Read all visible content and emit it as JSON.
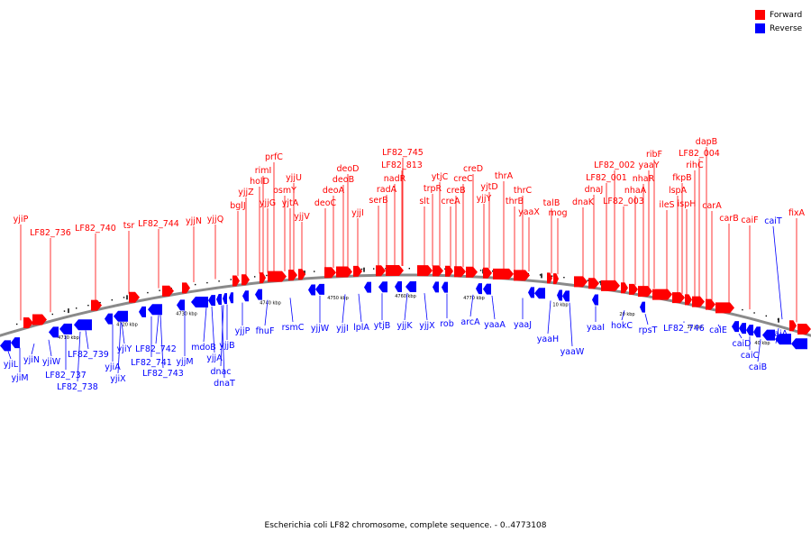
{
  "colors": {
    "forward": "#ff0000",
    "reverse": "#0000ff",
    "backbone": "#8a8a8a",
    "tick": "#000000"
  },
  "legend": [
    {
      "label": "Forward",
      "color": "#ff0000"
    },
    {
      "label": "Reverse",
      "color": "#0000ff"
    }
  ],
  "caption": "Escherichia coli LF82 chromosome, complete sequence. - 0..4773108",
  "scale_labels": [
    "4710 kbp",
    "4720 kbp",
    "4730 kbp",
    "4740 kbp",
    "4750 kbp",
    "4760 kbp",
    "4770 kbp",
    "10 kbp",
    "20 kbp",
    "30 kbp",
    "40 kbp"
  ],
  "forward_genes": [
    "yjiP",
    "LF82_736",
    "LF82_740",
    "tsr",
    "LF82_744",
    "yjjN",
    "yjjQ",
    "bglJ",
    "yjjZ",
    "rimI",
    "holD",
    "prfC",
    "yjjG",
    "osmY",
    "yjjU",
    "yjtA",
    "yjjV",
    "deoC",
    "deoA",
    "deoB",
    "deoD",
    "yjjI",
    "serB",
    "radA",
    "nadR",
    "LF82_745",
    "LF82_813",
    "slt",
    "trpR",
    "ytjC",
    "creA",
    "creB",
    "creC",
    "creD",
    "yjjY",
    "yjtD",
    "thrA",
    "thrB",
    "thrC",
    "yaaX",
    "talB",
    "mog",
    "dnaK",
    "dnaJ",
    "LF82_002",
    "LF82_001",
    "LF82_003",
    "nhaA",
    "nhaR",
    "yaaY",
    "ribF",
    "ileS",
    "lspA",
    "ispH",
    "fkpB",
    "rihC",
    "LF82_004",
    "dapB",
    "carA",
    "carB",
    "caiF",
    "fixA"
  ],
  "reverse_genes": [
    "yjiL",
    "yjiM",
    "yjiN",
    "yjiW",
    "LF82_737",
    "LF82_738",
    "LF82_739",
    "yjiA",
    "yjiX",
    "yjiY",
    "LF82_741",
    "LF82_742",
    "LF82_743",
    "yjjM",
    "mdoB",
    "yjjA",
    "yjjB",
    "dnac",
    "dnaT",
    "yjjP",
    "fhuF",
    "rsmC",
    "yjjW",
    "yjjI",
    "lplA",
    "ytjB",
    "yjjK",
    "yjjX",
    "rob",
    "arcA",
    "yaaA",
    "yaaJ",
    "yaaH",
    "yaaW",
    "yaaI",
    "hokC",
    "rpsT",
    "LF82_746",
    "caiE",
    "caiD",
    "caiC",
    "caiB",
    "caiA",
    "caiT"
  ]
}
